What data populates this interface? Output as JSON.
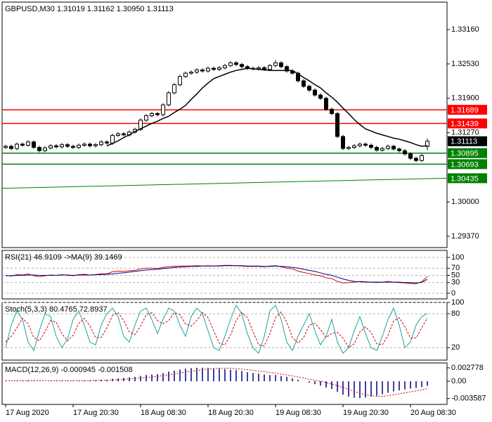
{
  "chart_data": [
    {
      "type": "candlestick",
      "title": "GBPUSD,M30  1.31019 1.31162 1.30950 1.31113",
      "categories": [
        "17 Aug 2020",
        null,
        null,
        null,
        null,
        null,
        null,
        null,
        null,
        null,
        null,
        null,
        "17 Aug 20:30",
        null,
        null,
        null,
        null,
        null,
        null,
        null,
        null,
        null,
        null,
        null,
        "18 Aug 08:30",
        null,
        null,
        null,
        null,
        null,
        null,
        null,
        null,
        null,
        null,
        null,
        "18 Aug 20:30",
        null,
        null,
        null,
        null,
        null,
        null,
        null,
        null,
        null,
        null,
        null,
        "19 Aug 08:30",
        null,
        null,
        null,
        null,
        null,
        null,
        null,
        null,
        null,
        null,
        null,
        "19 Aug 20:30",
        null,
        null,
        null,
        null,
        null,
        null,
        null,
        null,
        null,
        null,
        null,
        "20 Aug 08:30",
        null,
        null,
        null
      ],
      "open": [
        1.31,
        1.3102,
        1.3098,
        1.3106,
        1.3104,
        1.311,
        1.31,
        1.3094,
        1.3099,
        1.3103,
        1.3101,
        1.3105,
        1.3102,
        1.31,
        1.3104,
        1.3106,
        1.3103,
        1.3105,
        1.311,
        1.3108,
        1.3122,
        1.3125,
        1.3123,
        1.3128,
        1.3133,
        1.315,
        1.3158,
        1.3162,
        1.316,
        1.3178,
        1.32,
        1.3215,
        1.323,
        1.3236,
        1.3238,
        1.3242,
        1.324,
        1.3245,
        1.3243,
        1.3246,
        1.325,
        1.3255,
        1.3252,
        1.3248,
        1.3245,
        1.3244,
        1.3246,
        1.3243,
        1.325,
        1.3255,
        1.3248,
        1.324,
        1.3236,
        1.3222,
        1.3212,
        1.3205,
        1.3196,
        1.319,
        1.317,
        1.3162,
        1.312,
        1.3098,
        1.31,
        1.3103,
        1.3106,
        1.3104,
        1.31,
        1.3095,
        1.3098,
        1.3102,
        1.3097,
        1.3094,
        1.3088,
        1.308,
        1.3076,
        1.31019
      ],
      "high": [
        1.3105,
        1.3105,
        1.3109,
        1.3109,
        1.3113,
        1.3113,
        1.3103,
        1.3102,
        1.3106,
        1.3106,
        1.3108,
        1.3108,
        1.3105,
        1.3107,
        1.3109,
        1.3109,
        1.3108,
        1.3113,
        1.3113,
        1.3125,
        1.3128,
        1.3128,
        1.3131,
        1.3136,
        1.3153,
        1.3161,
        1.3165,
        1.3165,
        1.3181,
        1.3203,
        1.3218,
        1.3233,
        1.3239,
        1.3241,
        1.3245,
        1.3245,
        1.3248,
        1.3248,
        1.3249,
        1.3253,
        1.3258,
        1.3258,
        1.3255,
        1.3251,
        1.3248,
        1.3249,
        1.3249,
        1.3253,
        1.326,
        1.3258,
        1.3251,
        1.3243,
        1.3239,
        1.3225,
        1.3215,
        1.3208,
        1.3199,
        1.3193,
        1.3173,
        1.3165,
        1.3123,
        1.3103,
        1.3106,
        1.3109,
        1.3109,
        1.3107,
        1.3103,
        1.3101,
        1.3105,
        1.3105,
        1.31,
        1.3097,
        1.3091,
        1.3083,
        1.3088,
        1.31162
      ],
      "low": [
        1.3097,
        1.3095,
        1.3095,
        1.3101,
        1.3101,
        1.3097,
        1.3091,
        1.3091,
        1.3096,
        1.3098,
        1.3098,
        1.3099,
        1.3097,
        1.3097,
        1.3101,
        1.31,
        1.31,
        1.3102,
        1.3105,
        1.3105,
        1.3119,
        1.312,
        1.312,
        1.3125,
        1.313,
        1.3147,
        1.3155,
        1.3157,
        1.3157,
        1.3175,
        1.3197,
        1.3212,
        1.3227,
        1.3233,
        1.3235,
        1.3237,
        1.3237,
        1.324,
        1.324,
        1.3243,
        1.3247,
        1.3249,
        1.3245,
        1.3242,
        1.3241,
        1.3241,
        1.324,
        1.324,
        1.3247,
        1.3245,
        1.3237,
        1.3233,
        1.3219,
        1.3209,
        1.3202,
        1.3193,
        1.3187,
        1.3167,
        1.3159,
        1.3117,
        1.3095,
        1.3095,
        1.3097,
        1.31,
        1.3101,
        1.3097,
        1.3092,
        1.3092,
        1.3095,
        1.3094,
        1.3091,
        1.3085,
        1.3077,
        1.3073,
        1.3073,
        1.3095
      ],
      "close": [
        1.3102,
        1.3098,
        1.3106,
        1.3104,
        1.311,
        1.31,
        1.3094,
        1.3099,
        1.3103,
        1.3101,
        1.3105,
        1.3102,
        1.31,
        1.3104,
        1.3106,
        1.3103,
        1.3105,
        1.311,
        1.3108,
        1.3122,
        1.3125,
        1.3123,
        1.3128,
        1.3133,
        1.315,
        1.3158,
        1.3162,
        1.316,
        1.3178,
        1.32,
        1.3215,
        1.323,
        1.3236,
        1.3238,
        1.3242,
        1.324,
        1.3245,
        1.3243,
        1.3246,
        1.325,
        1.3255,
        1.3252,
        1.3248,
        1.3245,
        1.3244,
        1.3246,
        1.3243,
        1.325,
        1.3255,
        1.3248,
        1.324,
        1.3236,
        1.3222,
        1.3212,
        1.3205,
        1.3196,
        1.319,
        1.317,
        1.3162,
        1.312,
        1.3098,
        1.31,
        1.3103,
        1.3106,
        1.3104,
        1.31,
        1.3095,
        1.3098,
        1.3102,
        1.3097,
        1.3094,
        1.3088,
        1.308,
        1.3076,
        1.3085,
        1.31113
      ],
      "lines": [
        {
          "color": "#000000",
          "values": [
            null,
            null,
            null,
            null,
            null,
            null,
            null,
            null,
            null,
            null,
            null,
            null,
            null,
            null,
            null,
            null,
            null,
            null,
            1.3103,
            1.3107,
            1.3112,
            1.3118,
            1.3123,
            1.3129,
            1.3134,
            1.3139,
            1.3144,
            1.3148,
            1.3153,
            1.3157,
            1.3164,
            1.317,
            1.3177,
            1.3188,
            1.3198,
            1.3209,
            1.3218,
            1.3226,
            1.323,
            1.3234,
            1.3238,
            1.3241,
            1.3243,
            1.3245,
            1.3244,
            1.3243,
            1.3242,
            1.3241,
            1.3241,
            1.3241,
            1.3241,
            1.3241,
            1.3235,
            1.3228,
            1.3222,
            1.3215,
            1.3209,
            1.32,
            1.3192,
            1.3183,
            1.3172,
            1.3162,
            1.3151,
            1.3142,
            1.3134,
            1.313,
            1.3126,
            1.3123,
            1.312,
            1.3117,
            1.3115,
            1.3112,
            1.3109,
            1.3105,
            1.3102,
            1.3103
          ]
        }
      ],
      "levels": [
        {
          "value": 1.31689,
          "color": "#ff0000"
        },
        {
          "value": 1.31439,
          "color": "#ff0000"
        },
        {
          "value": 1.30895,
          "color": "#008000"
        },
        {
          "value": 1.30693,
          "color": "#008000"
        }
      ],
      "trendline": {
        "start": 1.3025,
        "end": 1.30435,
        "color": "#008000"
      },
      "ylim": [
        1.29164,
        1.33663
      ],
      "yticks": [
        {
          "value": 1.3316,
          "label": "1.33160"
        },
        {
          "value": 1.3253,
          "label": "1.32530"
        },
        {
          "value": 1.319,
          "label": "1.31900"
        },
        {
          "value": 1.3127,
          "label": "1.31270"
        },
        {
          "value": 1.3,
          "label": "1.30000"
        },
        {
          "value": 1.2937,
          "label": "1.29370"
        }
      ],
      "grid": false
    },
    {
      "type": "line",
      "title": "RSI(21) 46.9109 ->MA(9) 39.1469",
      "series": [
        {
          "color": "#d00000",
          "dash": false,
          "values": [
            50,
            48,
            52,
            51,
            54,
            49,
            46,
            49,
            51,
            50,
            52,
            50,
            49,
            52,
            53,
            51,
            52,
            55,
            54,
            60,
            62,
            61,
            63,
            64,
            68,
            70,
            70,
            69,
            72,
            74,
            75,
            76,
            76,
            76,
            77,
            76,
            77,
            76,
            77,
            78,
            78,
            77,
            76,
            75,
            75,
            75,
            74,
            76,
            77,
            74,
            70,
            68,
            62,
            58,
            55,
            51,
            49,
            43,
            41,
            33,
            29,
            30,
            31,
            33,
            32,
            31,
            30,
            31,
            33,
            31,
            30,
            29,
            27,
            27,
            32,
            46.9109
          ]
        },
        {
          "color": "#000080",
          "dash": false,
          "values": [
            49,
            49,
            50,
            50,
            51,
            51,
            50,
            50,
            50,
            50,
            51,
            51,
            50,
            51,
            51,
            51,
            52,
            52,
            53,
            54,
            56,
            57,
            59,
            61,
            63,
            65,
            66,
            67,
            69,
            70,
            72,
            73,
            74,
            75,
            75,
            76,
            76,
            76,
            76,
            77,
            77,
            77,
            77,
            76,
            76,
            76,
            75,
            75,
            76,
            75,
            74,
            72,
            70,
            67,
            64,
            61,
            57,
            53,
            50,
            45,
            40,
            36,
            33,
            32,
            31,
            31,
            31,
            31,
            31,
            31,
            31,
            30,
            30,
            29,
            30,
            39.1469
          ]
        }
      ],
      "ylim": [
        -15.7,
        119.6
      ],
      "yticks": [
        100,
        70,
        50,
        30,
        0
      ],
      "grid": true
    },
    {
      "type": "line",
      "title": "Stoch(5,3,3) 80.4765 72.8937",
      "series": [
        {
          "color": "#20a0a0",
          "dash": false,
          "values": [
            20,
            60,
            85,
            70,
            30,
            15,
            50,
            80,
            75,
            40,
            20,
            35,
            70,
            85,
            60,
            30,
            25,
            60,
            80,
            90,
            75,
            40,
            30,
            60,
            85,
            90,
            70,
            45,
            70,
            90,
            85,
            60,
            40,
            75,
            90,
            80,
            50,
            20,
            15,
            40,
            70,
            95,
            80,
            45,
            20,
            10,
            40,
            85,
            95,
            70,
            30,
            15,
            40,
            60,
            80,
            50,
            25,
            40,
            70,
            30,
            10,
            20,
            50,
            75,
            45,
            20,
            15,
            40,
            70,
            90,
            60,
            20,
            30,
            60,
            75,
            80.4765
          ]
        },
        {
          "color": "#d00000",
          "dash": true,
          "values": [
            30,
            40,
            55,
            72,
            62,
            38,
            32,
            48,
            68,
            65,
            45,
            32,
            42,
            63,
            72,
            58,
            38,
            38,
            55,
            77,
            82,
            68,
            48,
            43,
            58,
            78,
            82,
            68,
            62,
            68,
            82,
            78,
            62,
            58,
            68,
            82,
            73,
            50,
            28,
            25,
            42,
            68,
            82,
            73,
            48,
            25,
            23,
            45,
            73,
            83,
            65,
            38,
            28,
            38,
            60,
            63,
            52,
            38,
            45,
            47,
            37,
            20,
            27,
            48,
            57,
            47,
            27,
            25,
            42,
            67,
            73,
            57,
            37,
            37,
            55,
            72.8937
          ]
        }
      ],
      "ylim": [
        -2,
        100
      ],
      "yticks": [
        100,
        80,
        20
      ],
      "grid": true
    },
    {
      "type": "macd",
      "title": "MACD(12,26,9) -0.000945 -0.001508",
      "series": [
        {
          "color": "#000080",
          "style": "histogram",
          "values": [
            0.0001,
            0.0,
            0.0001,
            0.0001,
            0.0002,
            0.0001,
            0.0,
            0.0,
            0.0001,
            0.0001,
            0.0001,
            0.0001,
            0.0001,
            0.0001,
            0.0002,
            0.0002,
            0.0002,
            0.0003,
            0.0003,
            0.0005,
            0.0006,
            0.0007,
            0.0008,
            0.0009,
            0.0011,
            0.0013,
            0.0014,
            0.0015,
            0.0017,
            0.002,
            0.0022,
            0.0024,
            0.0026,
            0.0027,
            0.0028,
            0.0028,
            0.0028,
            0.0027,
            0.0026,
            0.0025,
            0.0024,
            0.0023,
            0.0021,
            0.0019,
            0.0017,
            0.0016,
            0.0014,
            0.0013,
            0.0013,
            0.0011,
            0.0009,
            0.0006,
            0.0003,
            0.0,
            -0.0003,
            -0.0006,
            -0.0009,
            -0.0013,
            -0.0016,
            -0.0022,
            -0.0028,
            -0.0032,
            -0.0034,
            -0.0035,
            -0.0034,
            -0.0032,
            -0.003,
            -0.0027,
            -0.0024,
            -0.0021,
            -0.0019,
            -0.0017,
            -0.0015,
            -0.0014,
            -0.0012,
            -0.000945
          ]
        },
        {
          "color": "#d00000",
          "style": "line",
          "values": [
            0.0001,
            0.0001,
            0.0001,
            0.0001,
            0.0001,
            0.0001,
            0.0001,
            0.0001,
            0.0001,
            0.0001,
            0.0001,
            0.0001,
            0.0001,
            0.0001,
            0.0001,
            0.0001,
            0.0002,
            0.0002,
            0.0002,
            0.0003,
            0.0003,
            0.0004,
            0.0005,
            0.0006,
            0.0007,
            0.0008,
            0.0009,
            0.001,
            0.0012,
            0.0013,
            0.0015,
            0.0017,
            0.0019,
            0.0021,
            0.0022,
            0.0024,
            0.0025,
            0.0026,
            0.0027,
            0.0027,
            0.0027,
            0.0026,
            0.0025,
            0.0024,
            0.0023,
            0.0021,
            0.002,
            0.0018,
            0.0017,
            0.0015,
            0.0013,
            0.0011,
            0.0009,
            0.0007,
            0.0004,
            0.0002,
            0.0,
            -0.0003,
            -0.0006,
            -0.0009,
            -0.0013,
            -0.0017,
            -0.0021,
            -0.0025,
            -0.0028,
            -0.003,
            -0.0031,
            -0.0031,
            -0.003,
            -0.0028,
            -0.0026,
            -0.0024,
            -0.0022,
            -0.002,
            -0.0018,
            -0.001508
          ]
        }
      ],
      "ylim": [
        -0.0048,
        0.0038
      ],
      "yticks": [
        0.002778,
        {
          "value": 0,
          "label": "0.00"
        },
        -0.003587
      ],
      "grid": false
    }
  ]
}
